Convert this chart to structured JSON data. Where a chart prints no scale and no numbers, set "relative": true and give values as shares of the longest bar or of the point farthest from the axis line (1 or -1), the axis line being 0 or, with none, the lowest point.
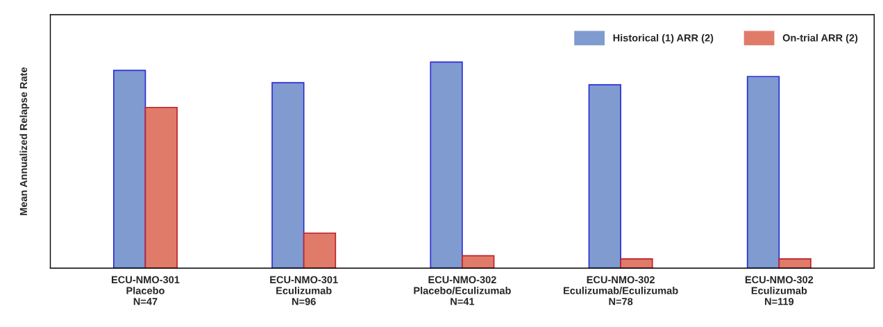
{
  "chart_data": {
    "type": "bar",
    "relative": true,
    "ylabel": "Mean Annualized Relapse Rate",
    "categories": [
      "ECU-NMO-301\nPlacebo\nN=47",
      "ECU-NMO-301\nEculizumab\nN=96",
      "ECU-NMO-302\nPlacebo/Eculizumab\nN=41",
      "ECU-NMO-302\nEculizumab/Eculizumab\nN=78",
      "ECU-NMO-302\nEculizumab\nN=119"
    ],
    "series": [
      {
        "name": "Historical (1) ARR (2)",
        "color": "#7f9bd0",
        "values": [
          0.96,
          0.9,
          1,
          0.89,
          0.93
        ]
      },
      {
        "name": "On-trial ARR (2)",
        "color": "#e07b6a",
        "values": [
          0.78,
          0.17,
          0.06,
          0.045,
          0.045
        ]
      }
    ],
    "legend": "top right",
    "grid": false
  }
}
